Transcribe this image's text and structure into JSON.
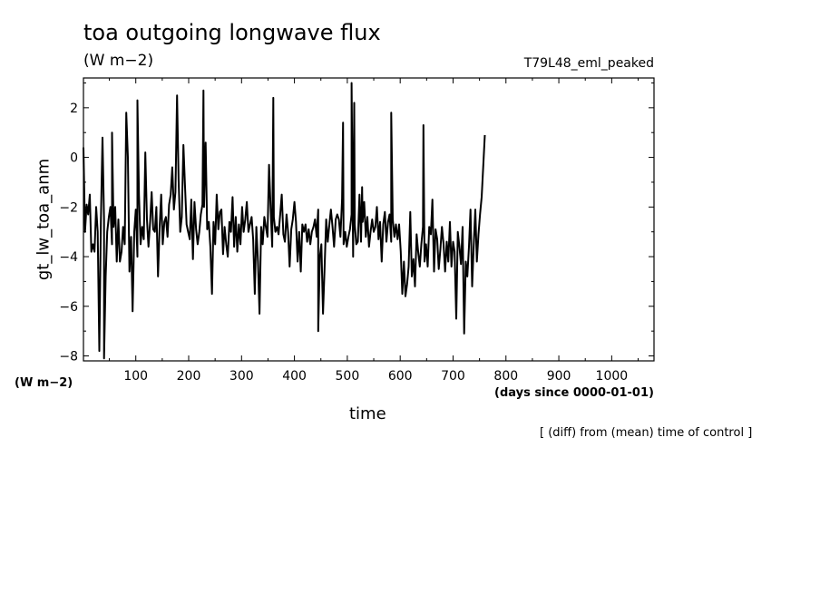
{
  "header": {
    "title": "toa outgoing longwave flux",
    "units": "(W m−2)",
    "run_name": "T79L48_eml_peaked"
  },
  "axes": {
    "y_var": "gt_lw_toa_anm",
    "y_units": "(W m−2)",
    "x_label": "time",
    "x_units": "(days since 0000-01-01)"
  },
  "footnote": "[ (diff) from (mean) time of control ]",
  "chart_data": {
    "type": "line",
    "title": "toa outgoing longwave flux",
    "xlabel": "time",
    "ylabel": "gt_lw_toa_anm",
    "xlim": [
      1,
      1080
    ],
    "ylim": [
      -8.2,
      3.2
    ],
    "x_ticks": [
      100,
      200,
      300,
      400,
      500,
      600,
      700,
      800,
      900,
      1000
    ],
    "y_ticks": [
      -8,
      -6,
      -4,
      -2,
      0,
      2
    ],
    "x_tick_labels": [
      "100",
      "200",
      "300",
      "400",
      "500",
      "600",
      "700",
      "800",
      "900",
      "1000"
    ],
    "y_tick_labels": [
      "−8",
      "−6",
      "−4",
      "−2",
      "0",
      "2"
    ],
    "grid": false,
    "series": [
      {
        "x_start": 1,
        "x_step": 3,
        "values": [
          0.4,
          -3.0,
          -1.9,
          -2.3,
          -1.5,
          -3.8,
          -3.5,
          -3.8,
          -2.0,
          -3.0,
          -7.8,
          -2.6,
          0.8,
          -2.5,
          -4.8,
          -3.0,
          -2.4,
          -2.0,
          -3.5,
          -2.8,
          -2.0,
          -4.2,
          -2.5,
          -4.2,
          -3.8,
          -2.8,
          -3.5,
          1.8,
          0.0,
          -4.6,
          -3.2,
          -6.2,
          -3.0,
          -2.1,
          -4.0,
          -1.5,
          -3.5,
          -2.8,
          -3.3,
          0.2,
          -2.5,
          -3.6,
          -2.6,
          -1.4,
          -2.9,
          -3.0,
          -2.0,
          -4.8,
          -2.9,
          -1.5,
          -3.5,
          -2.6,
          -2.4,
          -3.2,
          -1.9,
          -1.5,
          -0.4,
          -2.1,
          -1.4,
          2.5,
          -0.9,
          -3.0,
          -2.4,
          0.5,
          -1.1,
          -2.7,
          -3.0,
          -3.3,
          -1.7,
          -4.1,
          -1.8,
          -2.9,
          -3.5,
          -3.0,
          -2.3,
          -1.9,
          -2.0,
          0.6,
          -2.9,
          -2.6,
          -3.6,
          -5.5,
          -2.6,
          -3.5,
          -1.5,
          -2.9,
          -2.2,
          -2.1,
          -3.9,
          -2.8,
          -3.5,
          -4.0,
          -2.6,
          -3.0,
          -1.6,
          -3.6,
          -2.4,
          -3.8,
          -2.7,
          -3.5,
          -2.0,
          -3.0,
          -2.5,
          -1.8,
          -3.0,
          -2.7,
          -2.4,
          -3.3,
          -5.5,
          -2.8,
          -4.2,
          -6.3,
          -2.8,
          -3.5,
          -2.4,
          -2.8,
          -3.2,
          -0.3,
          -2.1,
          -3.6,
          -2.4,
          -3.0,
          -2.8,
          -3.1,
          -2.3,
          -1.5,
          -3.1,
          -3.4,
          -2.3,
          -3.0,
          -4.4,
          -2.9,
          -2.5,
          -1.8,
          -2.6,
          -4.2,
          -3.0,
          -4.6,
          -2.7,
          -3.0,
          -2.7,
          -3.4,
          -2.9,
          -3.5,
          -3.0,
          -2.8,
          -2.5,
          -3.2,
          -2.1,
          -4.0,
          -3.5,
          -6.3,
          -4.5,
          -2.5,
          -3.4,
          -2.7,
          -2.1,
          -2.8,
          -3.6,
          -2.5,
          -2.3,
          -2.5,
          -3.2,
          -1.7,
          -3.5,
          -3.0,
          -3.6,
          -3.2,
          -2.9,
          -2.3,
          -4.0,
          -2.7,
          -3.5,
          -3.4,
          -1.5,
          -3.4,
          -2.6,
          -1.8,
          -3.2,
          -2.4,
          -3.6,
          -3.0,
          -2.5,
          -3.0,
          -2.8,
          -2.0,
          -3.3,
          -2.6,
          -4.2,
          -2.7,
          -2.2,
          -3.4,
          -2.6,
          -2.3,
          -3.4,
          -2.5,
          -3.2,
          -2.7,
          -3.3,
          -2.7,
          -3.8,
          -5.5,
          -4.2,
          -5.6,
          -5.1,
          -4.4,
          -2.2,
          -4.8,
          -4.1,
          -5.2,
          -3.1,
          -3.8,
          -4.4,
          -3.5,
          -2.8,
          -4.2,
          -3.5,
          -4.4,
          -2.8,
          -3.1,
          -1.7,
          -4.6,
          -2.9,
          -3.3,
          -4.5,
          -3.7,
          -2.8,
          -3.5,
          -4.6,
          -3.4,
          -4.2,
          -2.6,
          -4.4,
          -3.4,
          -3.8,
          -6.5,
          -3.0,
          -3.6,
          -4.3,
          -2.8,
          -7.1,
          -4.2,
          -4.8,
          -3.6,
          -2.1,
          -5.2,
          -3.6,
          -2.1,
          -4.2,
          -3.1,
          -2.3,
          -1.6
        ]
      }
    ],
    "events": [
      {
        "x": 40,
        "y": -8.1
      },
      {
        "x": 55,
        "y": 1.0
      },
      {
        "x": 103,
        "y": 2.3
      },
      {
        "x": 228,
        "y": 2.7
      },
      {
        "x": 360,
        "y": 2.4
      },
      {
        "x": 445,
        "y": -7.0
      },
      {
        "x": 492,
        "y": 1.4
      },
      {
        "x": 508,
        "y": 3.0
      },
      {
        "x": 513,
        "y": 2.2
      },
      {
        "x": 528,
        "y": -1.2
      },
      {
        "x": 583,
        "y": 1.8
      },
      {
        "x": 644,
        "y": 1.3
      },
      {
        "x": 760,
        "y": 0.9
      }
    ]
  }
}
